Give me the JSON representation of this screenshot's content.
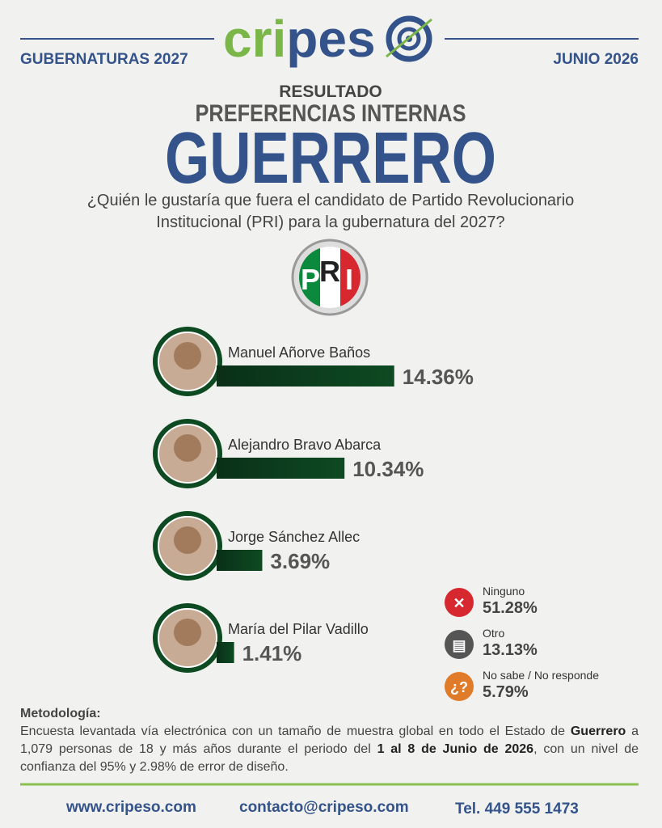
{
  "header": {
    "left": "GUBERNATURAS 2027",
    "right": "JUNIO 2026",
    "brand": {
      "part1": "cri",
      "part2": "pes"
    }
  },
  "titles": {
    "kicker": "RESULTADO",
    "subtitle": "PREFERENCIAS INTERNAS",
    "title": "GUERRERO"
  },
  "question": [
    "¿Quién le gustaría que fuera el candidato de Partido Revolucionario",
    "Institucional (PRI) para la gubernatura del 2027?"
  ],
  "pri_logo": [
    "P",
    "R",
    "I"
  ],
  "chart_data": {
    "type": "bar",
    "orientation": "horizontal",
    "categories": [
      "Manuel Añorve Baños",
      "Alejandro Bravo Abarca",
      "Jorge Sánchez Allec",
      "María del Pilar Vadillo"
    ],
    "values": [
      14.36,
      10.34,
      3.69,
      1.41
    ],
    "value_labels": [
      "14.36%",
      "10.34%",
      "3.69%",
      "1.41%"
    ],
    "color": "#0d4a22"
  },
  "other_answers": [
    {
      "label": "Ninguno",
      "value_label": "51.28%"
    },
    {
      "label": "Otro",
      "value_label": "13.13%"
    },
    {
      "label": "No sabe / No responde",
      "value_label": "5.79%"
    }
  ],
  "methodology": {
    "title": "Metodología:",
    "parts": [
      "Encuesta levantada vía electrónica con un tamaño de muestra global en todo el Estado de ",
      "Guerrero",
      " a 1,079 personas de 18 y más años durante el periodo del ",
      "1 al 8 de Junio de 2026",
      ", con un nivel de confianza del 95% y 2.98% de error de diseño."
    ]
  },
  "footer": [
    "www.cripeso.com",
    "contacto@cripeso.com",
    "Tel. 449 555 1473"
  ]
}
